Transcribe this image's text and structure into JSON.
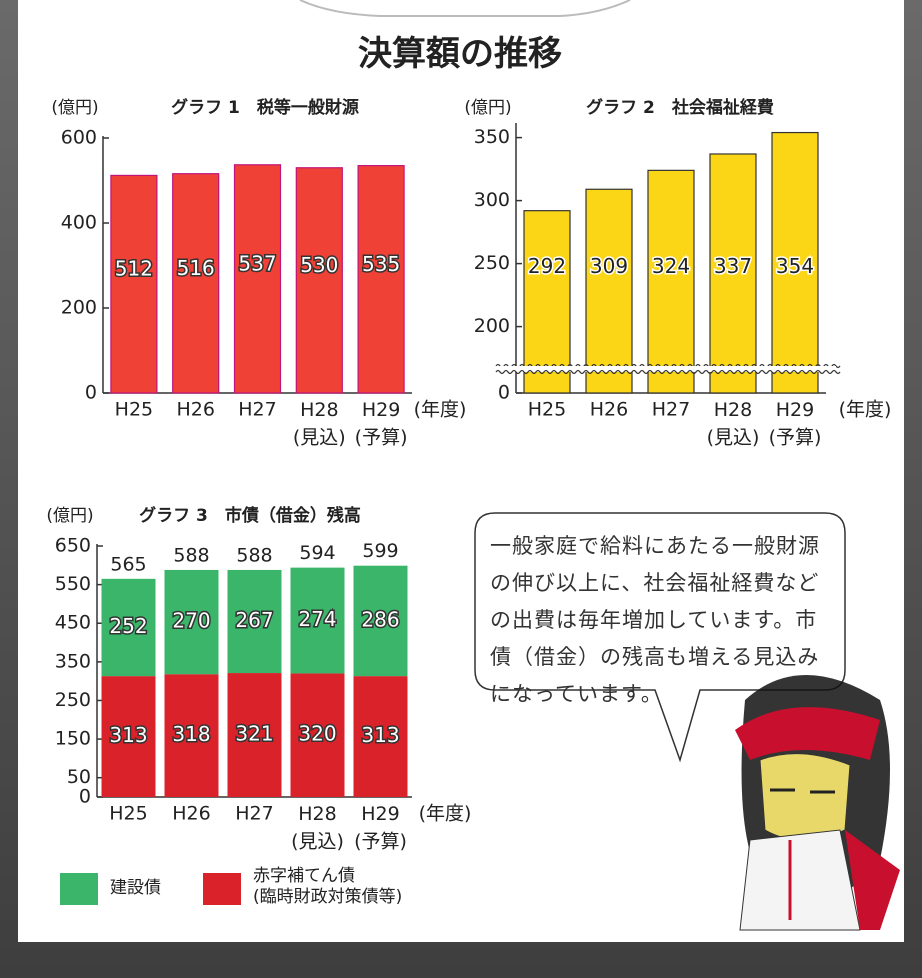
{
  "title": "決算額の推移",
  "note": "一般家庭で給料にあたる一般財源の伸び以上に、社会福祉経費などの出費は毎年増加しています。市債（借金）の残高も増える見込みになっています。",
  "chart_data": [
    {
      "type": "bar",
      "title": "グラフ 1　税等一般財源",
      "y_label": "(億円)",
      "x_label": "(年度)",
      "categories": [
        "H25",
        "H26",
        "H27",
        "H28\n(見込)",
        "H29\n(予算)"
      ],
      "values": [
        512,
        516,
        537,
        530,
        535
      ],
      "color": "#ef4136",
      "edge_color": "#c0157a",
      "ylim": [
        0,
        600
      ],
      "yticks": [
        0,
        200,
        400,
        600
      ]
    },
    {
      "type": "bar",
      "title": "グラフ 2　社会福祉経費",
      "y_label": "(億円)",
      "x_label": "(年度)",
      "categories": [
        "H25",
        "H26",
        "H27",
        "H28\n(見込)",
        "H29\n(予算)"
      ],
      "values": [
        292,
        309,
        324,
        337,
        354
      ],
      "color": "#fbd616",
      "edge_color": "#333333",
      "ylim": [
        0,
        360
      ],
      "axis_break": [
        0,
        160
      ],
      "yticks": [
        0,
        200,
        250,
        300,
        350
      ]
    },
    {
      "type": "stacked_bar",
      "title": "グラフ 3　市債（借金）残高",
      "y_label": "(億円)",
      "x_label": "(年度)",
      "categories": [
        "H25",
        "H26",
        "H27",
        "H28\n(見込)",
        "H29\n(予算)"
      ],
      "series": [
        {
          "name": "建設債",
          "color": "#3ab56a",
          "values": [
            252,
            270,
            267,
            274,
            286
          ]
        },
        {
          "name": "赤字補てん債\n(臨時財政対策債等)",
          "color": "#d9222a",
          "values": [
            313,
            318,
            321,
            320,
            313
          ]
        }
      ],
      "totals": [
        565,
        588,
        588,
        594,
        599
      ],
      "total_color": "#e8457c",
      "ylim": [
        0,
        650
      ],
      "yticks": [
        0,
        50,
        150,
        250,
        350,
        450,
        550,
        650
      ]
    }
  ]
}
